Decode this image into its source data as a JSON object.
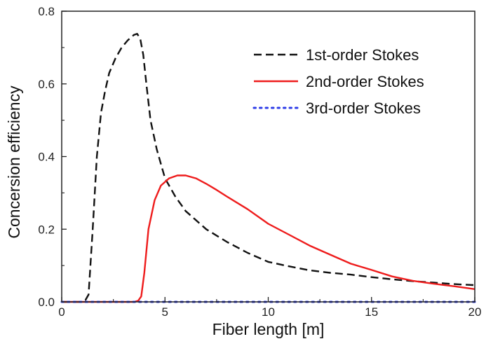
{
  "chart_data": {
    "type": "line",
    "xlabel": "Fiber length [m]",
    "ylabel": "Concersion efficiency",
    "xlim": [
      0,
      20
    ],
    "ylim": [
      0,
      0.8
    ],
    "xticks": [
      0,
      5,
      10,
      15,
      20
    ],
    "xtick_labels": [
      "0",
      "5",
      "10",
      "15",
      "20"
    ],
    "yticks": [
      0.0,
      0.2,
      0.4,
      0.6,
      0.8
    ],
    "ytick_labels": [
      "0.0",
      "0.2",
      "0.4",
      "0.6",
      "0.8"
    ],
    "grid": false,
    "legend_position": "top-right",
    "series": [
      {
        "name": "1st-order Stokes",
        "color": "#111111",
        "dash": "dashed",
        "x": [
          0,
          1.0,
          1.15,
          1.3,
          1.5,
          1.7,
          1.9,
          2.1,
          2.3,
          2.6,
          2.9,
          3.2,
          3.5,
          3.65,
          3.8,
          3.95,
          4.1,
          4.3,
          4.6,
          5.0,
          5.5,
          6.0,
          7.0,
          8.0,
          9.0,
          10.0,
          11.0,
          12.0,
          13.0,
          14.0,
          15.0,
          16.0,
          17.0,
          18.0,
          19.0,
          20.0
        ],
        "y": [
          0,
          0,
          0.005,
          0.02,
          0.2,
          0.4,
          0.52,
          0.58,
          0.63,
          0.67,
          0.7,
          0.72,
          0.735,
          0.738,
          0.725,
          0.68,
          0.6,
          0.5,
          0.42,
          0.34,
          0.29,
          0.25,
          0.2,
          0.165,
          0.135,
          0.11,
          0.098,
          0.087,
          0.08,
          0.075,
          0.068,
          0.062,
          0.057,
          0.053,
          0.049,
          0.046
        ]
      },
      {
        "name": "2nd-order Stokes",
        "color": "#ee1c1c",
        "dash": "solid",
        "x": [
          0,
          3.5,
          3.7,
          3.85,
          4.0,
          4.2,
          4.5,
          4.8,
          5.2,
          5.6,
          6.0,
          6.5,
          7.0,
          7.5,
          8.0,
          9.0,
          10.0,
          11.0,
          12.0,
          13.0,
          14.0,
          15.0,
          16.0,
          17.0,
          18.0,
          19.0,
          20.0
        ],
        "y": [
          0,
          0,
          0.003,
          0.015,
          0.08,
          0.2,
          0.28,
          0.32,
          0.34,
          0.348,
          0.348,
          0.34,
          0.325,
          0.308,
          0.29,
          0.255,
          0.215,
          0.185,
          0.155,
          0.13,
          0.105,
          0.088,
          0.07,
          0.058,
          0.05,
          0.043,
          0.035
        ]
      },
      {
        "name": "3rd-order Stokes",
        "color": "#2d3ce8",
        "dash": "dotted",
        "x": [
          0,
          20
        ],
        "y": [
          0,
          0
        ]
      }
    ]
  }
}
